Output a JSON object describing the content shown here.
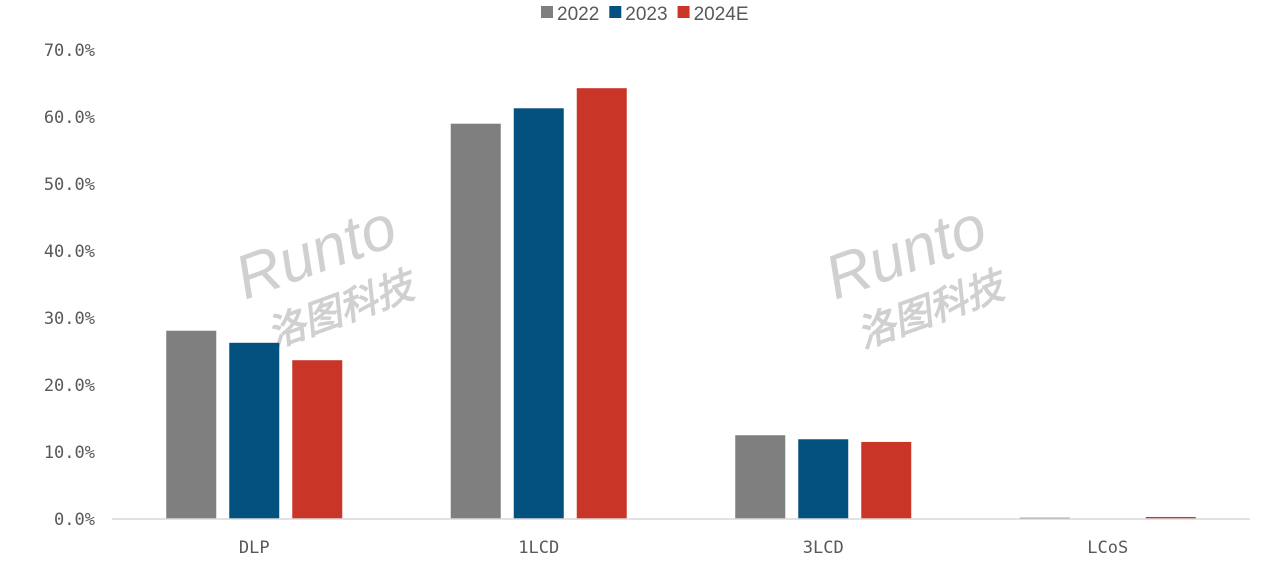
{
  "chart_data": {
    "type": "bar",
    "categories": [
      "DLP",
      "1LCD",
      "3LCD",
      "LCoS"
    ],
    "series": [
      {
        "name": "2022",
        "color": "#7f7f7f",
        "values": [
          28.1,
          59.0,
          12.5,
          0.2
        ]
      },
      {
        "name": "2023",
        "color": "#03517f",
        "values": [
          26.3,
          61.3,
          11.9,
          0.0
        ]
      },
      {
        "name": "2024E",
        "color": "#c93628",
        "values": [
          23.7,
          64.3,
          11.5,
          0.3
        ]
      }
    ],
    "ylim": [
      0,
      70
    ],
    "yticks": [
      "0.0%",
      "10.0%",
      "20.0%",
      "30.0%",
      "40.0%",
      "50.0%",
      "60.0%",
      "70.0%"
    ],
    "grid": false,
    "legend": "top-center",
    "title": "",
    "xlabel": "",
    "ylabel": ""
  },
  "watermark": {
    "brand": "Runto",
    "cn": "洛图科技"
  }
}
